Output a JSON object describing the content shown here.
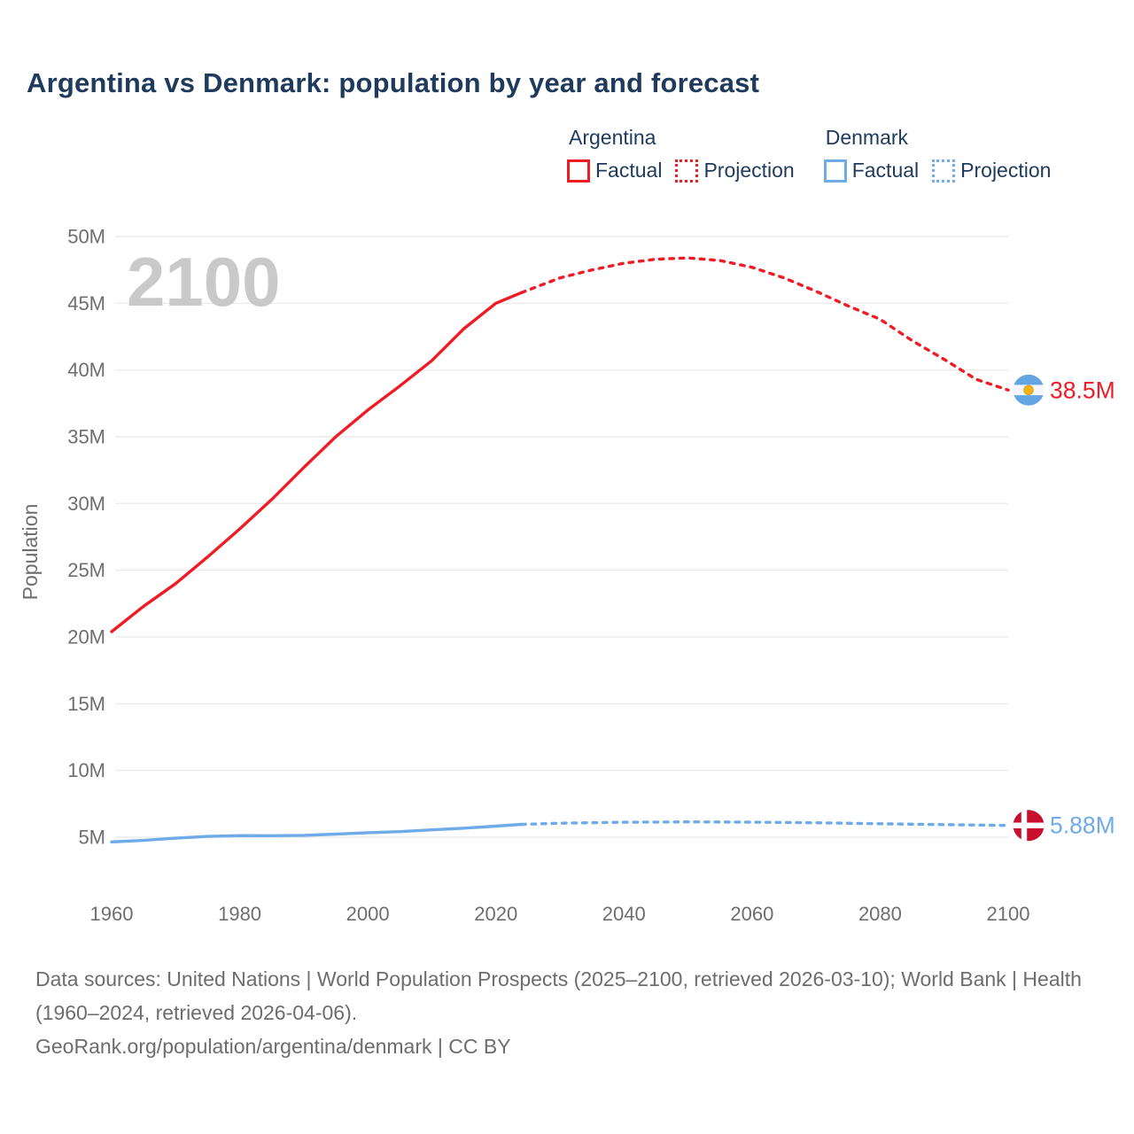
{
  "title": "Argentina vs Denmark: population by year and forecast",
  "watermark": "2100",
  "legend": {
    "groups": [
      {
        "name": "Argentina",
        "color": "#ee1c25",
        "items": [
          {
            "label": "Factual",
            "style": "solid"
          },
          {
            "label": "Projection",
            "style": "dotted"
          }
        ]
      },
      {
        "name": "Denmark",
        "color": "#6fabe9",
        "items": [
          {
            "label": "Factual",
            "style": "solid"
          },
          {
            "label": "Projection",
            "style": "dotted"
          }
        ]
      }
    ]
  },
  "caption": {
    "line1": "Data sources: United Nations | World Population Prospects (2025–2100, retrieved 2026-03-10); World Bank | Health (1960–2024, retrieved 2026-04-06).",
    "line2": "GeoRank.org/population/argentina/denmark | CC BY"
  },
  "chart_data": {
    "type": "line",
    "title": "Argentina vs Denmark: population by year and forecast",
    "xlabel": "",
    "ylabel": "Population",
    "grid": true,
    "legend_position": "top-right",
    "x_range": [
      1960,
      2100
    ],
    "y_range_millions": [
      5,
      50
    ],
    "x_ticks": [
      1960,
      1980,
      2000,
      2020,
      2040,
      2060,
      2080,
      2100
    ],
    "y_ticks_millions": [
      5,
      10,
      15,
      20,
      25,
      30,
      35,
      40,
      45,
      50
    ],
    "y_tick_suffix": "M",
    "colors": {
      "argentina": "#ee1c25",
      "denmark": "#6fabe9",
      "grid": "#ececec",
      "axis_text": "#6e6e6e",
      "watermark": "#c9c9c9",
      "argentina_flag_blue": "#63a5e3",
      "argentina_flag_sun": "#f6b40e",
      "denmark_flag_red": "#c8102e"
    },
    "series": [
      {
        "name": "Argentina Factual",
        "color": "#ee1c25",
        "style": "solid",
        "points": [
          [
            1960,
            20.4
          ],
          [
            1965,
            22.3
          ],
          [
            1970,
            24.0
          ],
          [
            1975,
            26.0
          ],
          [
            1980,
            28.1
          ],
          [
            1985,
            30.3
          ],
          [
            1990,
            32.7
          ],
          [
            1995,
            35.0
          ],
          [
            2000,
            37.0
          ],
          [
            2005,
            38.8
          ],
          [
            2010,
            40.7
          ],
          [
            2015,
            43.1
          ],
          [
            2020,
            45.0
          ],
          [
            2024,
            45.8
          ]
        ]
      },
      {
        "name": "Argentina Projection",
        "color": "#ee1c25",
        "style": "dotted",
        "end_marker": "argentina-flag",
        "end_label": "38.5M",
        "points": [
          [
            2024,
            45.8
          ],
          [
            2030,
            46.9
          ],
          [
            2035,
            47.5
          ],
          [
            2040,
            48.0
          ],
          [
            2045,
            48.3
          ],
          [
            2050,
            48.4
          ],
          [
            2055,
            48.2
          ],
          [
            2060,
            47.7
          ],
          [
            2065,
            46.9
          ],
          [
            2070,
            45.9
          ],
          [
            2075,
            44.8
          ],
          [
            2080,
            43.8
          ],
          [
            2085,
            42.2
          ],
          [
            2090,
            40.8
          ],
          [
            2095,
            39.3
          ],
          [
            2100,
            38.5
          ]
        ]
      },
      {
        "name": "Denmark Factual",
        "color": "#6fabe9",
        "style": "solid",
        "points": [
          [
            1960,
            4.65
          ],
          [
            1965,
            4.76
          ],
          [
            1970,
            4.93
          ],
          [
            1975,
            5.06
          ],
          [
            1980,
            5.12
          ],
          [
            1985,
            5.11
          ],
          [
            1990,
            5.14
          ],
          [
            1995,
            5.23
          ],
          [
            2000,
            5.34
          ],
          [
            2005,
            5.42
          ],
          [
            2010,
            5.55
          ],
          [
            2015,
            5.68
          ],
          [
            2020,
            5.83
          ],
          [
            2024,
            5.96
          ]
        ]
      },
      {
        "name": "Denmark Projection",
        "color": "#6fabe9",
        "style": "dotted",
        "end_marker": "denmark-flag",
        "end_label": "5.88M",
        "points": [
          [
            2024,
            5.96
          ],
          [
            2030,
            6.05
          ],
          [
            2040,
            6.12
          ],
          [
            2050,
            6.15
          ],
          [
            2060,
            6.13
          ],
          [
            2070,
            6.08
          ],
          [
            2080,
            6.01
          ],
          [
            2090,
            5.94
          ],
          [
            2100,
            5.88
          ]
        ]
      }
    ]
  }
}
